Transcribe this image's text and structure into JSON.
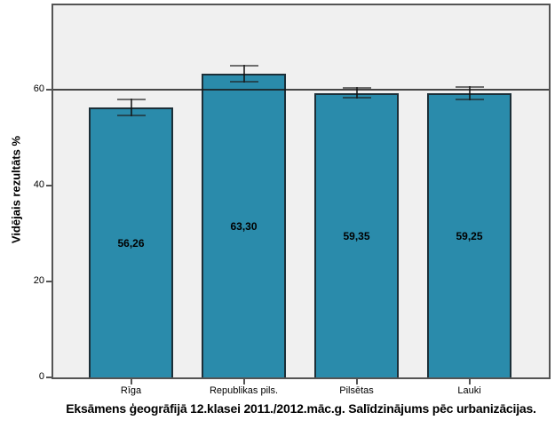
{
  "chart_data": {
    "type": "bar",
    "title": "Eksāmens ģeogrāfijā 12.klasei 2011./2012.māc.g. Salīdzinājums pēc urbanizācijas.",
    "ylabel": "Vidējais rezultāts %",
    "xlabel": "",
    "categories": [
      "Rīga",
      "Republikas pils.",
      "Pilsētas",
      "Lauki"
    ],
    "values": [
      56.26,
      63.3,
      59.35,
      59.25
    ],
    "value_labels": [
      "56,26",
      "63,30",
      "59,35",
      "59,25"
    ],
    "error_bars": [
      1.85,
      1.9,
      1.2,
      1.55
    ],
    "reference_line": 60,
    "y_ticks": [
      0,
      20,
      40,
      60
    ],
    "ylim": [
      0,
      78
    ],
    "grid": false,
    "legend": false,
    "colors": {
      "bar_fill": "#2A8BAB",
      "bar_border": "#1C2F38",
      "plot_bg": "#F0F0F0",
      "frame_border": "#545454",
      "reference_line": "#3F3F3F",
      "error_bar": "#333333",
      "text": "#000000",
      "outer_bg": "#FFFFFF"
    }
  }
}
